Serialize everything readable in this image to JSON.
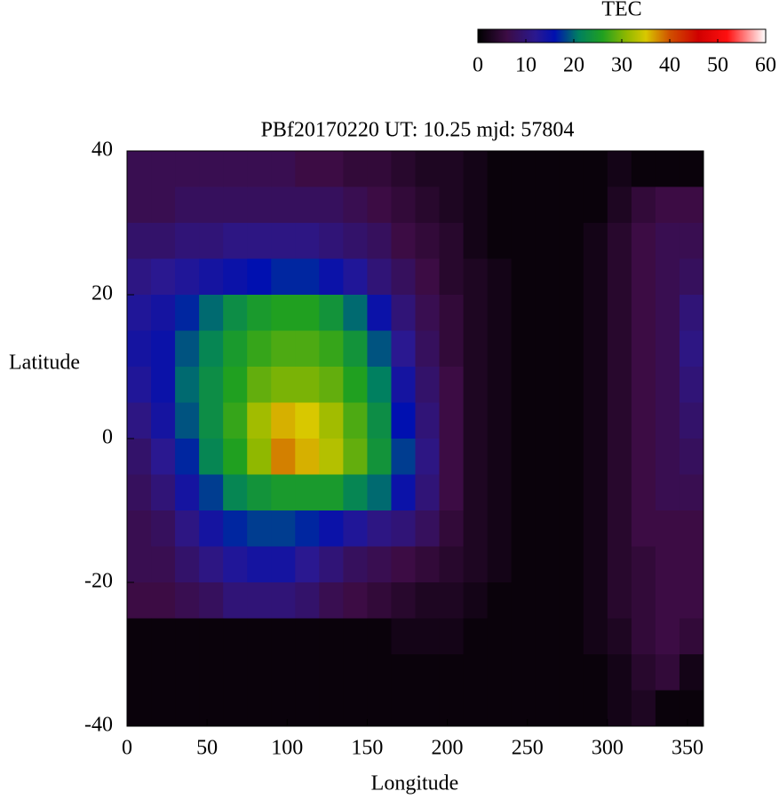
{
  "chart_data": {
    "type": "heatmap",
    "title": "PBf20170220  UT: 10.25  mjd: 57804",
    "x_label": "Longitude",
    "y_label": "Latitude",
    "colorbar_label": "TEC",
    "x": [
      7.5,
      22.5,
      37.5,
      52.5,
      67.5,
      82.5,
      97.5,
      112.5,
      127.5,
      142.5,
      157.5,
      172.5,
      187.5,
      202.5,
      217.5,
      232.5,
      247.5,
      262.5,
      277.5,
      292.5,
      307.5,
      322.5,
      337.5,
      352.5
    ],
    "y": [
      37.5,
      32.5,
      27.5,
      22.5,
      17.5,
      12.5,
      7.5,
      2.5,
      -2.5,
      -7.5,
      -12.5,
      -17.5,
      -22.5,
      -27.5,
      -32.5,
      -37.5
    ],
    "values": [
      [
        7,
        7,
        7,
        7,
        7,
        7,
        7,
        6,
        6,
        5,
        5,
        4,
        3,
        3,
        2,
        1,
        1,
        1,
        1,
        1,
        2,
        1,
        1,
        1
      ],
      [
        7,
        7,
        8,
        8,
        8,
        8,
        8,
        8,
        8,
        7,
        6,
        5,
        4,
        3,
        2,
        1,
        1,
        1,
        1,
        1,
        3,
        5,
        6,
        6
      ],
      [
        9,
        9,
        10,
        10,
        11,
        11,
        11,
        11,
        10,
        9,
        8,
        6,
        5,
        4,
        2,
        1,
        1,
        1,
        1,
        2,
        4,
        6,
        7,
        7
      ],
      [
        11,
        12,
        13,
        14,
        15,
        16,
        17,
        17,
        15,
        13,
        10,
        8,
        6,
        4,
        3,
        2,
        1,
        1,
        1,
        2,
        4,
        6,
        7,
        8
      ],
      [
        13,
        14,
        17,
        20,
        23,
        25,
        26,
        26,
        24,
        20,
        15,
        10,
        7,
        5,
        3,
        2,
        1,
        1,
        1,
        2,
        4,
        6,
        7,
        10
      ],
      [
        14,
        15,
        19,
        22,
        25,
        27,
        28,
        28,
        27,
        24,
        19,
        12,
        8,
        5,
        3,
        2,
        1,
        1,
        1,
        2,
        4,
        6,
        7,
        11
      ],
      [
        13,
        15,
        20,
        23,
        26,
        29,
        30,
        30,
        29,
        26,
        21,
        14,
        9,
        6,
        3,
        2,
        1,
        1,
        1,
        2,
        4,
        6,
        7,
        10
      ],
      [
        11,
        14,
        19,
        23,
        27,
        32,
        36,
        35,
        32,
        28,
        23,
        16,
        10,
        6,
        3,
        2,
        1,
        1,
        1,
        2,
        4,
        6,
        7,
        9
      ],
      [
        9,
        12,
        17,
        22,
        26,
        31,
        38,
        36,
        33,
        29,
        24,
        18,
        11,
        6,
        3,
        2,
        1,
        1,
        1,
        2,
        4,
        6,
        7,
        8
      ],
      [
        8,
        10,
        14,
        18,
        22,
        24,
        25,
        25,
        25,
        22,
        20,
        15,
        10,
        6,
        3,
        2,
        1,
        1,
        1,
        2,
        4,
        6,
        7,
        7
      ],
      [
        7,
        8,
        11,
        14,
        17,
        18,
        18,
        17,
        15,
        13,
        11,
        10,
        8,
        5,
        3,
        2,
        1,
        1,
        1,
        2,
        4,
        6,
        6,
        6
      ],
      [
        7,
        7,
        9,
        11,
        13,
        14,
        14,
        12,
        10,
        8,
        7,
        6,
        5,
        4,
        3,
        2,
        1,
        1,
        1,
        2,
        4,
        5,
        6,
        6
      ],
      [
        6,
        6,
        7,
        8,
        10,
        10,
        10,
        9,
        7,
        6,
        5,
        4,
        3,
        3,
        2,
        1,
        1,
        1,
        1,
        2,
        4,
        5,
        6,
        6
      ],
      [
        1,
        1,
        1,
        1,
        1,
        1,
        1,
        1,
        1,
        1,
        1,
        2,
        2,
        2,
        1,
        1,
        1,
        1,
        1,
        2,
        3,
        5,
        6,
        5
      ],
      [
        1,
        1,
        1,
        1,
        1,
        1,
        1,
        1,
        1,
        1,
        1,
        1,
        1,
        1,
        1,
        1,
        1,
        1,
        1,
        1,
        2,
        4,
        5,
        2
      ],
      [
        1,
        1,
        1,
        1,
        1,
        1,
        1,
        1,
        1,
        1,
        1,
        1,
        1,
        1,
        1,
        1,
        1,
        1,
        1,
        1,
        2,
        3,
        1,
        1
      ]
    ],
    "xlim": [
      0,
      360
    ],
    "xticks": [
      0,
      50,
      100,
      150,
      200,
      250,
      300,
      350
    ],
    "ylim": [
      -40,
      40
    ],
    "yticks": [
      -40,
      -20,
      0,
      20,
      40
    ],
    "clim": [
      0,
      60
    ],
    "cticks": [
      0,
      10,
      20,
      30,
      40,
      50,
      60
    ],
    "colorscale": [
      {
        "value": 0,
        "color": "#000000"
      },
      {
        "value": 6,
        "color": "#3c0c44"
      },
      {
        "value": 12,
        "color": "#2a1890"
      },
      {
        "value": 16,
        "color": "#0010b0"
      },
      {
        "value": 21,
        "color": "#008060"
      },
      {
        "value": 26,
        "color": "#20a020"
      },
      {
        "value": 31,
        "color": "#90b800"
      },
      {
        "value": 35,
        "color": "#d8c800"
      },
      {
        "value": 40,
        "color": "#d05000"
      },
      {
        "value": 46,
        "color": "#d00000"
      },
      {
        "value": 52,
        "color": "#ff1010"
      },
      {
        "value": 60,
        "color": "#ffffff"
      }
    ]
  }
}
